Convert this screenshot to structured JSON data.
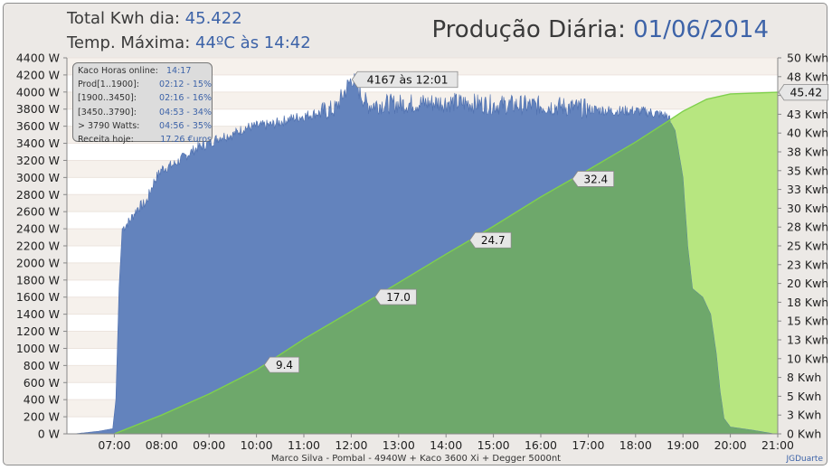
{
  "header": {
    "total_label": "Total Kwh dia:",
    "total_value": "45.422",
    "temp_label": "Temp. Máxima:",
    "temp_value": "44ºC às 14:42",
    "title_label": "Produção Diária:",
    "title_date": "01/06/2014"
  },
  "info_box": [
    {
      "label": "Kaco Horas online:",
      "value": "14:17"
    },
    {
      "label": "Prod[1..1900]:",
      "value": "02:12 - 15%"
    },
    {
      "label": "[1900..3450]:",
      "value": "02:16 - 16%"
    },
    {
      "label": "[3450..3790]:",
      "value": "04:53 - 34%"
    },
    {
      "label": "> 3790 Watts:",
      "value": "04:56 - 35%"
    },
    {
      "label": "Receita hoje:",
      "value": "17.26 €uros"
    }
  ],
  "footer": "Marco Silva - Pombal - 4940W + Kaco 3600 Xi + Degger 5000nt",
  "credit": "JGDuarte",
  "colors": {
    "power": "#6383bd",
    "energy": "#6ea86b",
    "energy_light": "#b7e680",
    "value_text": "#3d63a8"
  },
  "chart_data": {
    "type": "area",
    "x_ticks": [
      "07:00",
      "08:00",
      "09:00",
      "10:00",
      "11:00",
      "12:00",
      "13:00",
      "14:00",
      "15:00",
      "16:00",
      "17:00",
      "18:00",
      "19:00",
      "20:00",
      "21:00"
    ],
    "xlim": [
      "06:00",
      "21:00"
    ],
    "y_left": {
      "ticks": [
        "0 W",
        "200 W",
        "400 W",
        "600 W",
        "800 W",
        "1000 W",
        "1200 W",
        "1400 W",
        "1600 W",
        "1800 W",
        "2000 W",
        "2200 W",
        "2400 W",
        "2600 W",
        "2800 W",
        "3000 W",
        "3200 W",
        "3400 W",
        "3600 W",
        "3800 W",
        "4000 W",
        "4200 W",
        "4400 W"
      ],
      "range": [
        0,
        4400
      ]
    },
    "y_right": {
      "ticks": [
        "0 Kwh",
        "3 Kwh",
        "5 Kwh",
        "8 Kwh",
        "10 Kwh",
        "13 Kwh",
        "15 Kwh",
        "18 Kwh",
        "20 Kwh",
        "23 Kwh",
        "25 Kwh",
        "28 Kwh",
        "30 Kwh",
        "33 Kwh",
        "35 Kwh",
        "38 Kwh",
        "40 Kwh",
        "43 Kwh",
        "45 Kwh",
        "48 Kwh",
        "50 Kwh"
      ],
      "range": [
        0,
        50
      ]
    },
    "series": [
      {
        "unit": "W",
        "points": [
          [
            "06:10",
            0
          ],
          [
            "06:40",
            30
          ],
          [
            "06:58",
            60
          ],
          [
            "07:02",
            400
          ],
          [
            "07:06",
            1700
          ],
          [
            "07:10",
            2400
          ],
          [
            "07:20",
            2500
          ],
          [
            "07:30",
            2650
          ],
          [
            "07:40",
            2700
          ],
          [
            "07:50",
            2950
          ],
          [
            "08:00",
            3100
          ],
          [
            "08:15",
            3150
          ],
          [
            "08:30",
            3250
          ],
          [
            "08:45",
            3350
          ],
          [
            "09:00",
            3400
          ],
          [
            "09:15",
            3480
          ],
          [
            "09:30",
            3500
          ],
          [
            "09:45",
            3580
          ],
          [
            "10:00",
            3600
          ],
          [
            "10:20",
            3620
          ],
          [
            "10:40",
            3680
          ],
          [
            "11:00",
            3720
          ],
          [
            "11:20",
            3760
          ],
          [
            "11:40",
            3800
          ],
          [
            "12:01",
            4167
          ],
          [
            "12:20",
            3850
          ],
          [
            "12:40",
            3860
          ],
          [
            "13:00",
            3860
          ],
          [
            "13:30",
            3870
          ],
          [
            "14:00",
            3880
          ],
          [
            "14:30",
            3870
          ],
          [
            "15:00",
            3850
          ],
          [
            "15:30",
            3850
          ],
          [
            "16:00",
            3840
          ],
          [
            "16:30",
            3830
          ],
          [
            "17:00",
            3800
          ],
          [
            "17:30",
            3780
          ],
          [
            "18:00",
            3780
          ],
          [
            "18:20",
            3760
          ],
          [
            "18:40",
            3720
          ],
          [
            "18:50",
            3550
          ],
          [
            "19:00",
            3000
          ],
          [
            "19:06",
            2200
          ],
          [
            "19:12",
            1700
          ],
          [
            "19:25",
            1600
          ],
          [
            "19:35",
            1400
          ],
          [
            "19:42",
            950
          ],
          [
            "19:47",
            500
          ],
          [
            "19:52",
            180
          ],
          [
            "20:00",
            80
          ],
          [
            "20:30",
            40
          ],
          [
            "20:55",
            0
          ]
        ]
      },
      {
        "unit": "Kwh",
        "points": [
          [
            "07:00",
            0
          ],
          [
            "08:00",
            2.5
          ],
          [
            "09:00",
            5.3
          ],
          [
            "10:00",
            8.5
          ],
          [
            "11:00",
            12.6
          ],
          [
            "12:00",
            16.3
          ],
          [
            "13:00",
            20.1
          ],
          [
            "14:00",
            23.9
          ],
          [
            "15:00",
            27.6
          ],
          [
            "16:00",
            31.5
          ],
          [
            "17:00",
            35.1
          ],
          [
            "18:00",
            38.8
          ],
          [
            "18:40",
            41.5
          ],
          [
            "19:00",
            42.9
          ],
          [
            "19:30",
            44.5
          ],
          [
            "20:00",
            45.2
          ],
          [
            "21:00",
            45.42
          ]
        ]
      }
    ],
    "peak_label": "4167 às 12:01",
    "energy_labels": [
      {
        "time": "10:10",
        "value": "9.4"
      },
      {
        "time": "12:30",
        "value": "17.0"
      },
      {
        "time": "14:30",
        "value": "24.7"
      },
      {
        "time": "16:40",
        "value": "32.4"
      }
    ],
    "end_value_label": "45.42"
  }
}
